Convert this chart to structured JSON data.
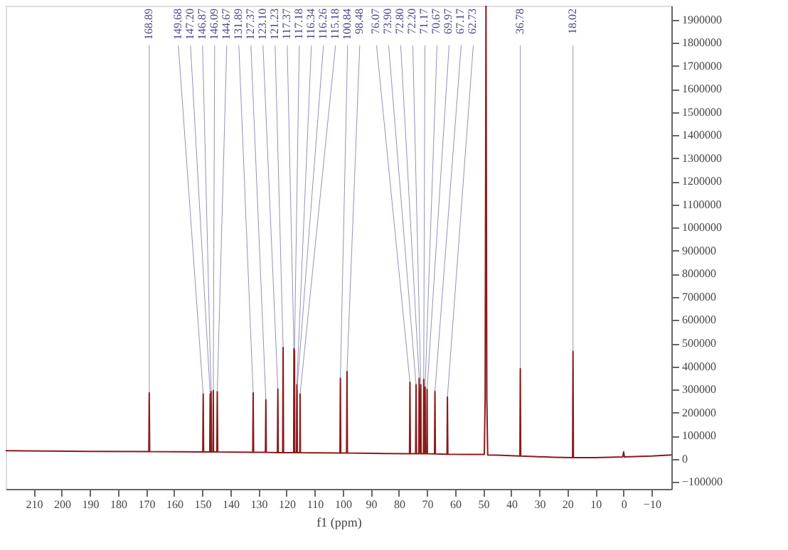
{
  "chart_data": {
    "type": "line",
    "xlabel": "f1 (ppm)",
    "xlim": [
      220,
      -17
    ],
    "ylim": [
      -130000,
      1960000
    ],
    "xticks": [
      210,
      200,
      190,
      180,
      170,
      160,
      150,
      140,
      130,
      120,
      110,
      100,
      90,
      80,
      70,
      60,
      50,
      40,
      30,
      20,
      10,
      0,
      -10
    ],
    "yticks": [
      -100000,
      0,
      100000,
      200000,
      300000,
      400000,
      500000,
      600000,
      700000,
      800000,
      900000,
      1000000,
      1100000,
      1200000,
      1300000,
      1400000,
      1500000,
      1600000,
      1700000,
      1800000,
      1900000
    ],
    "grid": false,
    "marker": "none",
    "line_style": "solid",
    "series": [
      {
        "color": "#8b1a1a",
        "x": [
          220,
          190,
          169.04,
          168.89,
          168.74,
          149.83,
          149.68,
          149.53,
          147.35,
          147.2,
          147.05,
          146.97,
          146.87,
          146.77,
          146.19,
          146.09,
          145.99,
          144.82,
          144.67,
          144.52,
          132.04,
          131.89,
          131.74,
          127.52,
          127.37,
          127.22,
          123.25,
          123.1,
          122.95,
          121.38,
          121.23,
          121.08,
          117.47,
          117.37,
          117.28,
          117.18,
          117.08,
          116.44,
          116.34,
          116.3,
          116.26,
          116.16,
          115.28,
          115.18,
          115.08,
          110,
          100.99,
          100.84,
          100.69,
          98.63,
          98.48,
          98.33,
          85,
          76.22,
          76.07,
          75.92,
          74.05,
          73.9,
          73.75,
          72.9,
          72.8,
          72.5,
          72.2,
          72.1,
          71.27,
          71.17,
          71.07,
          70.77,
          70.67,
          70.57,
          70.07,
          69.97,
          69.87,
          67.32,
          67.17,
          67.02,
          62.88,
          62.73,
          62.58,
          55,
          49.6,
          49.3,
          49.0,
          48.7,
          48.4,
          45,
          36.93,
          36.78,
          36.63,
          25,
          18.17,
          18.02,
          17.87,
          10,
          0.3,
          0,
          -0.3,
          -10,
          -17
        ],
        "values": [
          35000,
          32000,
          31000,
          285000,
          31000,
          30000,
          280000,
          30000,
          30000,
          280000,
          30000,
          30000,
          290000,
          30000,
          30000,
          296000,
          30000,
          30000,
          290000,
          30000,
          28000,
          285000,
          28000,
          28000,
          256000,
          28000,
          27000,
          302000,
          27000,
          27000,
          482000,
          27000,
          27000,
          477000,
          27000,
          470000,
          27000,
          27000,
          320000,
          27000,
          300000,
          27000,
          27000,
          280000,
          27000,
          26000,
          25000,
          349000,
          25000,
          25000,
          378000,
          25000,
          23000,
          22000,
          331000,
          22000,
          22000,
          320000,
          22000,
          22000,
          349000,
          22000,
          320000,
          22000,
          22000,
          343000,
          22000,
          22000,
          310000,
          22000,
          22000,
          300000,
          22000,
          21000,
          291000,
          21000,
          20000,
          267000,
          20000,
          19000,
          19000,
          260000,
          1960000,
          260000,
          17000,
          16000,
          12000,
          390000,
          12000,
          7000,
          5000,
          465000,
          5000,
          5000,
          8000,
          30000,
          8000,
          12000,
          17000
        ]
      }
    ],
    "annotations": [
      {
        "text": "168.89",
        "x": 168.89,
        "y": 285000
      },
      {
        "text": "149.68",
        "x": 149.68,
        "y": 280000
      },
      {
        "text": "147.20",
        "x": 147.2,
        "y": 280000
      },
      {
        "text": "146.87",
        "x": 146.87,
        "y": 290000
      },
      {
        "text": "146.09",
        "x": 146.09,
        "y": 296000
      },
      {
        "text": "144.67",
        "x": 144.67,
        "y": 290000
      },
      {
        "text": "131.89",
        "x": 131.89,
        "y": 285000
      },
      {
        "text": "127.37",
        "x": 127.37,
        "y": 256000
      },
      {
        "text": "123.10",
        "x": 123.1,
        "y": 302000
      },
      {
        "text": "121.23",
        "x": 121.23,
        "y": 482000
      },
      {
        "text": "117.37",
        "x": 117.37,
        "y": 477000
      },
      {
        "text": "117.18",
        "x": 117.18,
        "y": 470000
      },
      {
        "text": "116.34",
        "x": 116.34,
        "y": 320000
      },
      {
        "text": "116.26",
        "x": 116.26,
        "y": 300000
      },
      {
        "text": "115.18",
        "x": 115.18,
        "y": 280000
      },
      {
        "text": "100.84",
        "x": 100.84,
        "y": 349000
      },
      {
        "text": "98.48",
        "x": 98.48,
        "y": 378000
      },
      {
        "text": "76.07",
        "x": 76.07,
        "y": 331000
      },
      {
        "text": "73.90",
        "x": 73.9,
        "y": 320000
      },
      {
        "text": "72.80",
        "x": 72.8,
        "y": 349000
      },
      {
        "text": "72.20",
        "x": 72.2,
        "y": 320000
      },
      {
        "text": "71.17",
        "x": 71.17,
        "y": 343000
      },
      {
        "text": "70.67",
        "x": 70.67,
        "y": 310000
      },
      {
        "text": "69.97",
        "x": 69.97,
        "y": 300000
      },
      {
        "text": "67.17",
        "x": 67.17,
        "y": 291000
      },
      {
        "text": "62.73",
        "x": 62.73,
        "y": 267000
      },
      {
        "text": "36.78",
        "x": 36.78,
        "y": 390000
      },
      {
        "text": "18.02",
        "x": 18.02,
        "y": 465000
      }
    ]
  }
}
